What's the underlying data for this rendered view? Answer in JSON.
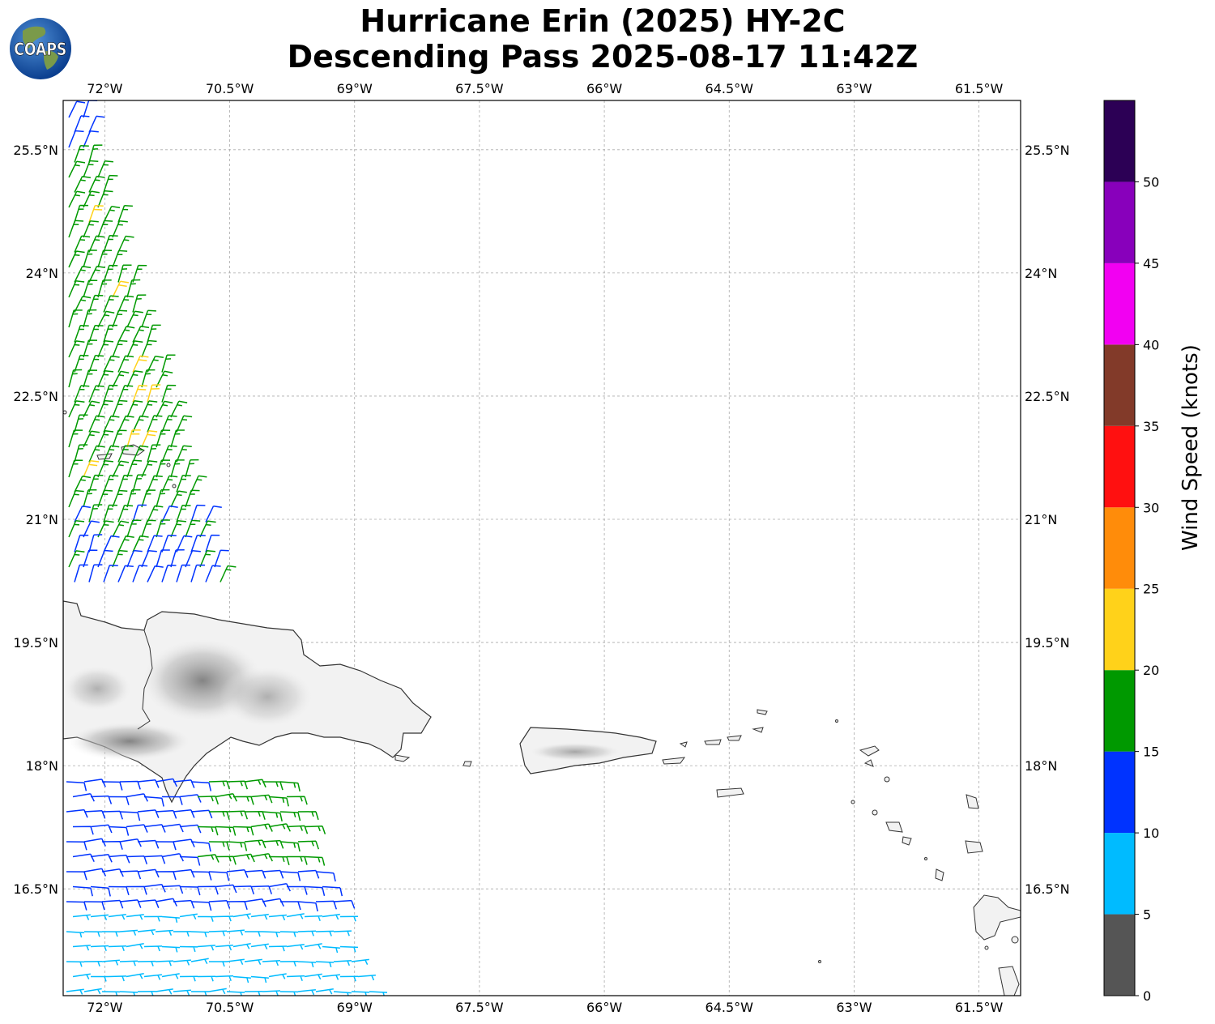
{
  "title": {
    "line1": "Hurricane Erin (2025) HY-2C",
    "line2": "Descending Pass 2025-08-17 11:42Z"
  },
  "logo": {
    "text": "COAPS",
    "icon": "globe-icon"
  },
  "map": {
    "lon_range": [
      -72.5,
      -61.0
    ],
    "lat_range": [
      15.2,
      26.1
    ],
    "gridlines": true,
    "lon_ticks": [
      {
        "value": -72,
        "label": "72°W"
      },
      {
        "value": -70.5,
        "label": "70.5°W"
      },
      {
        "value": -69,
        "label": "69°W"
      },
      {
        "value": -67.5,
        "label": "67.5°W"
      },
      {
        "value": -66,
        "label": "66°W"
      },
      {
        "value": -64.5,
        "label": "64.5°W"
      },
      {
        "value": -63,
        "label": "63°W"
      },
      {
        "value": -61.5,
        "label": "61.5°W"
      }
    ],
    "lat_ticks": [
      {
        "value": 25.5,
        "label": "25.5°N"
      },
      {
        "value": 24,
        "label": "24°N"
      },
      {
        "value": 22.5,
        "label": "22.5°N"
      },
      {
        "value": 21,
        "label": "21°N"
      },
      {
        "value": 19.5,
        "label": "19.5°N"
      },
      {
        "value": 18,
        "label": "18°N"
      },
      {
        "value": 16.5,
        "label": "16.5°N"
      }
    ]
  },
  "colorbar": {
    "label": "Wind Speed (knots)",
    "bins": [
      {
        "min": 0,
        "max": 5,
        "color": "#555555"
      },
      {
        "min": 5,
        "max": 10,
        "color": "#00bbff"
      },
      {
        "min": 10,
        "max": 15,
        "color": "#0033ff"
      },
      {
        "min": 15,
        "max": 20,
        "color": "#009900"
      },
      {
        "min": 20,
        "max": 25,
        "color": "#ffd21a"
      },
      {
        "min": 25,
        "max": 30,
        "color": "#ff8c0a"
      },
      {
        "min": 30,
        "max": 35,
        "color": "#ff1010"
      },
      {
        "min": 35,
        "max": 40,
        "color": "#823a29"
      },
      {
        "min": 40,
        "max": 45,
        "color": "#f200f2"
      },
      {
        "min": 45,
        "max": 50,
        "color": "#8800bb"
      },
      {
        "min": 50,
        "max": 55,
        "color": "#2c0055"
      }
    ],
    "ticks": [
      {
        "value": 0,
        "label": "0"
      },
      {
        "value": 5,
        "label": "5"
      },
      {
        "value": 10,
        "label": "10"
      },
      {
        "value": 15,
        "label": "15"
      },
      {
        "value": 20,
        "label": "20"
      },
      {
        "value": 25,
        "label": "25"
      },
      {
        "value": 30,
        "label": "30"
      },
      {
        "value": 35,
        "label": "35"
      },
      {
        "value": 40,
        "label": "40"
      },
      {
        "value": 45,
        "label": "45"
      },
      {
        "value": 50,
        "label": "50"
      }
    ]
  }
}
